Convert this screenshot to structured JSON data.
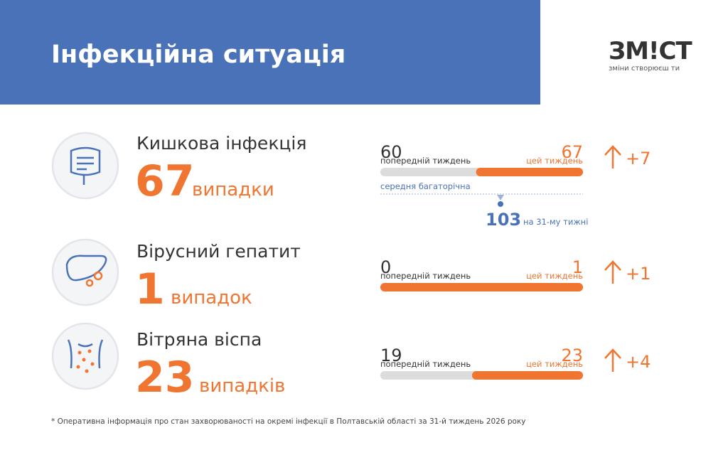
{
  "header": {
    "title": "Інфекційна ситуація",
    "logo": "ЗМ!СТ",
    "tagline": "зміни створюєш ти"
  },
  "items": [
    {
      "name": "Кишкова інфекція",
      "count": 67,
      "unit": "випадки",
      "previous": 60,
      "previous_label": "попередній тиждень",
      "current": 67,
      "current_label": "цей тиждень",
      "change": "+7",
      "average": {
        "label": "середня багаторічна",
        "value": 103,
        "note": "на 31-му тижні"
      }
    },
    {
      "name": "Вірусний гепатит",
      "count": 1,
      "unit": "випадок",
      "previous": 0,
      "previous_label": "попередній тиждень",
      "current": 1,
      "current_label": "цей тиждень",
      "change": "+1"
    },
    {
      "name": "Вітряна віспа",
      "count": 23,
      "unit": "випадків",
      "previous": 19,
      "previous_label": "попередній тиждень",
      "current": 23,
      "current_label": "цей тиждень",
      "change": "+4"
    }
  ],
  "footnote": "* Оперативна інформація про стан захворюваності на окремі інфекції в Полтавській області за 31-й тиждень 2026 року"
}
